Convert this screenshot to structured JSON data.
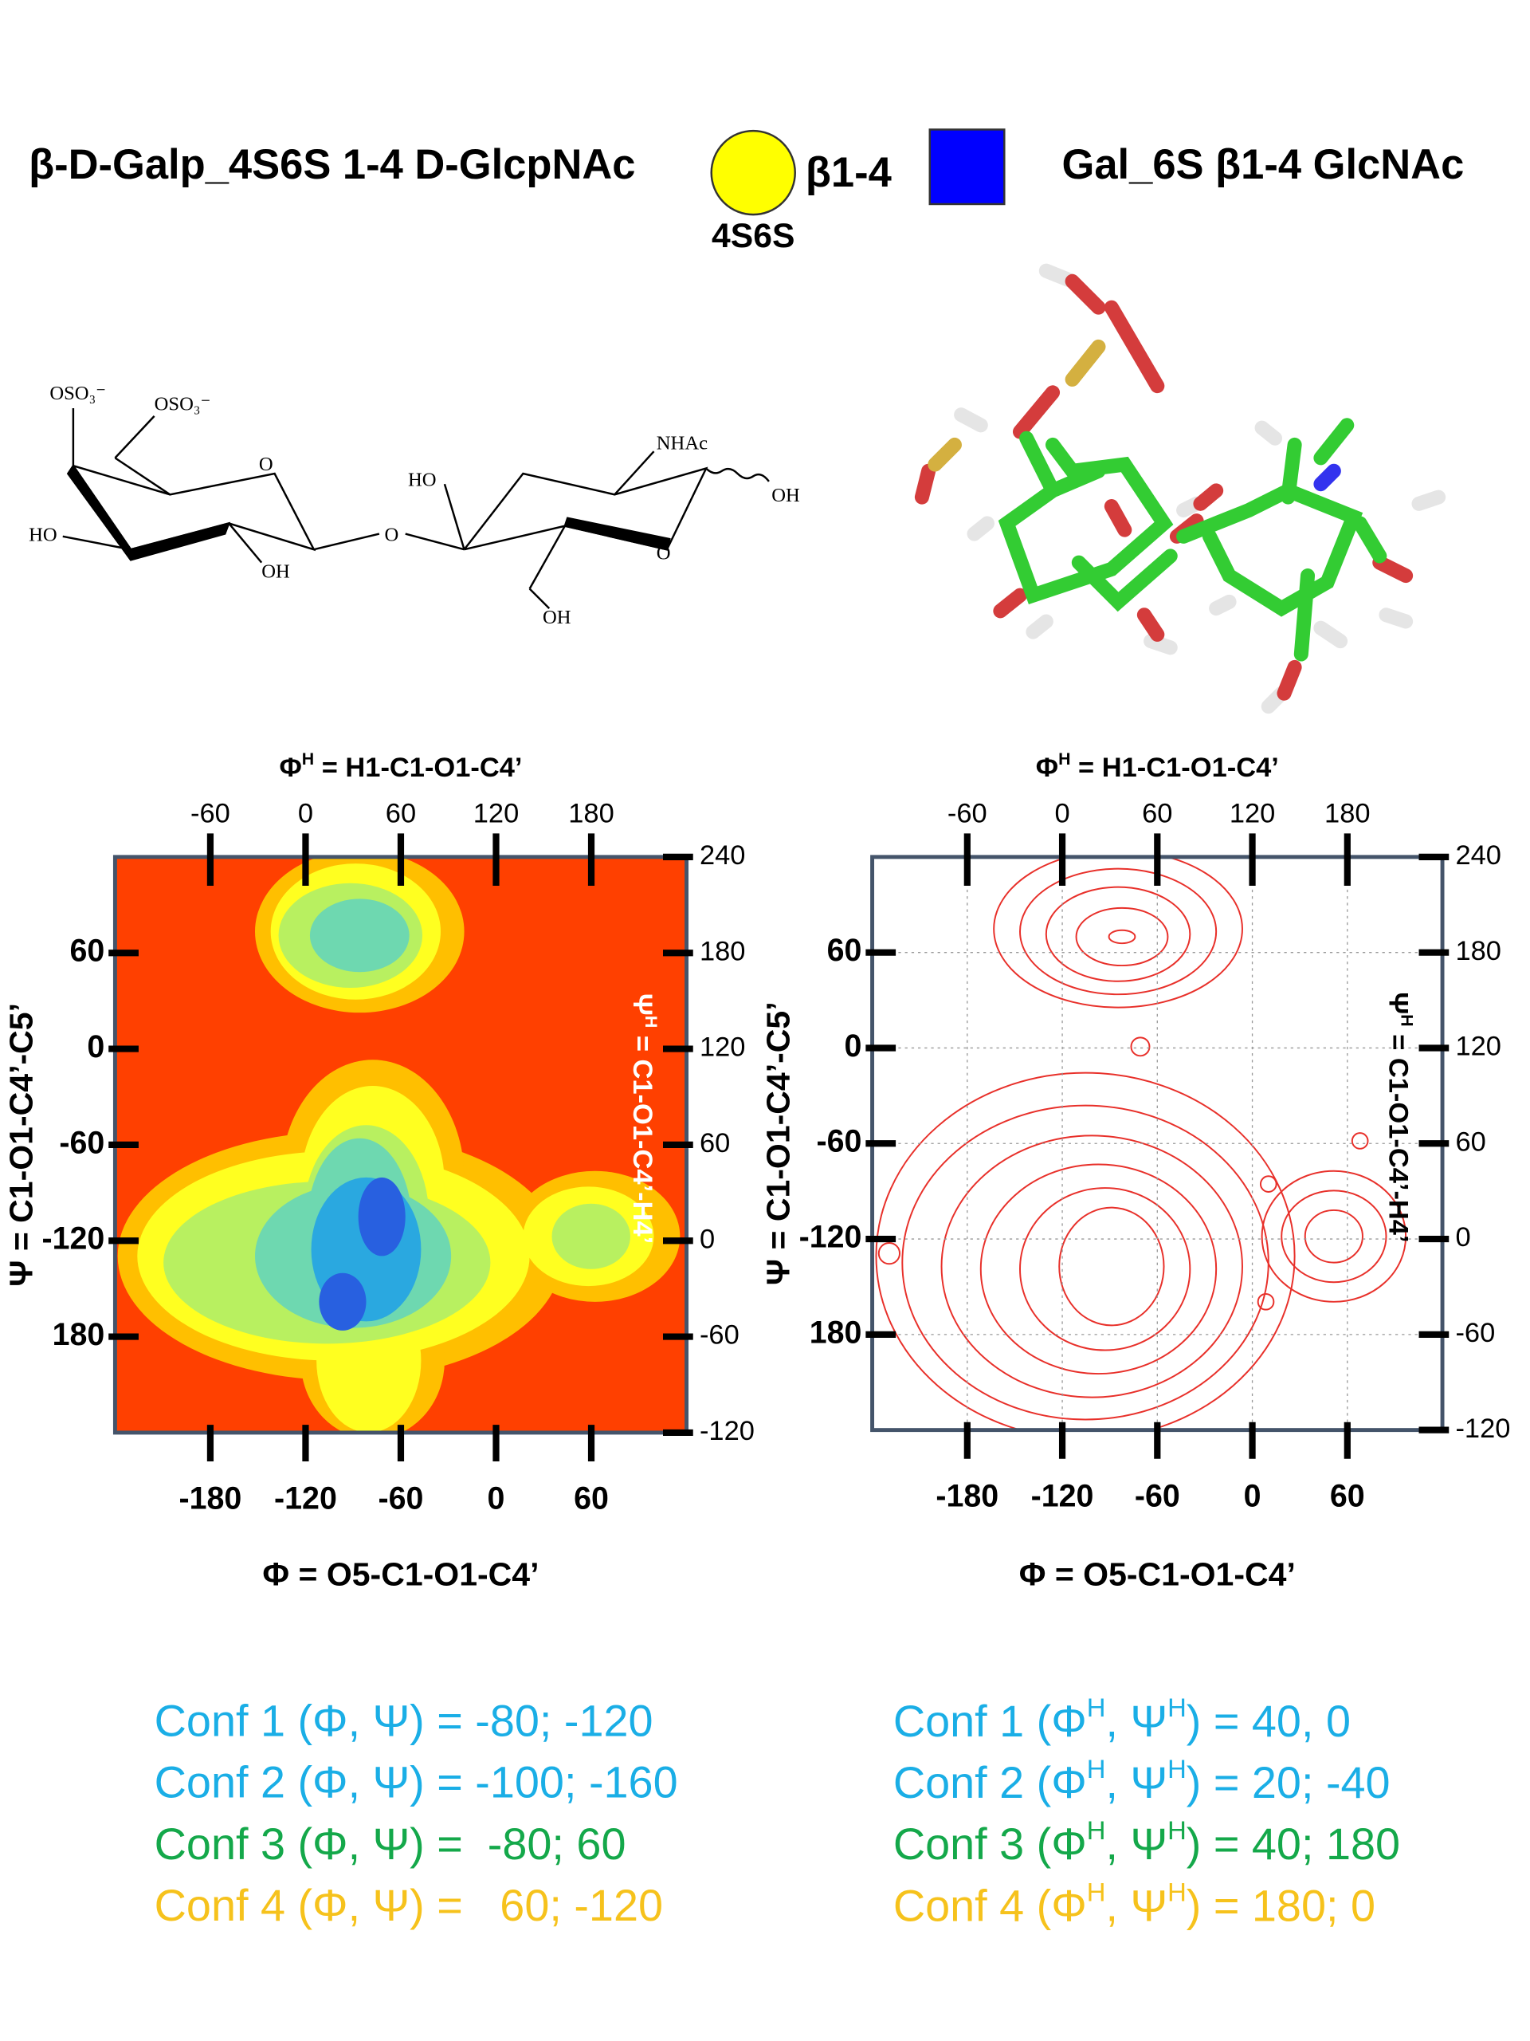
{
  "header": {
    "left_title": "β-D-Galp_4S6S 1-4 D-GlcpNAc",
    "linkage": "β1-4",
    "residue_label": "4S6S",
    "right_title": "Gal_6S β1-4 GlcNAc"
  },
  "structure_labels": [
    "OSO₃⁻",
    "OSO₃⁻",
    "O",
    "HO",
    "OH",
    "O",
    "HO",
    "NHAc",
    "OH",
    "O",
    "OH"
  ],
  "plots": [
    {
      "x2": {
        "label": [
          "Φ",
          "H",
          " = H1-C1-O1-C4’"
        ],
        "lim": [
          -120,
          240
        ],
        "ticks": [
          -60,
          0,
          60,
          120,
          180
        ]
      },
      "x": {
        "label": "Φ = O5-C1-O1-C4’",
        "lim": [
          -240,
          120
        ],
        "ticks": [
          -180,
          -120,
          -60,
          0,
          60
        ]
      },
      "y": {
        "label": "Ψ = C1-O1-C4’-C5’",
        "lim": [
          -240,
          120
        ],
        "ticks": [
          60,
          0,
          -60,
          -120,
          {
            "value": -180,
            "label": "180"
          }
        ]
      },
      "y2": {
        "label": [
          "Ψ",
          "H",
          " = C1-O1-C4’-H4’"
        ],
        "lim": [
          -120,
          240
        ],
        "ticks": [
          240,
          180,
          120,
          60,
          0,
          -60,
          -120
        ]
      }
    },
    {
      "x2": {
        "label": [
          "Φ",
          "H",
          " = H1-C1-O1-C4’"
        ],
        "lim": [
          -120,
          240
        ],
        "ticks": [
          -60,
          0,
          60,
          120,
          180
        ]
      },
      "x": {
        "label": "Φ = O5-C1-O1-C4’",
        "lim": [
          -240,
          120
        ],
        "ticks": [
          -180,
          -120,
          -60,
          0,
          60
        ]
      },
      "y": {
        "label": "Ψ = C1-O1-C4’-C5’",
        "lim": [
          -240,
          120
        ],
        "ticks": [
          60,
          0,
          -60,
          -120,
          {
            "value": -180,
            "label": "180"
          }
        ]
      },
      "y2": {
        "label": [
          "Ψ",
          "H",
          " = C1-O1-C4’-H4’"
        ],
        "lim": [
          -120,
          240
        ],
        "ticks": [
          240,
          180,
          120,
          60,
          0,
          -60,
          -120
        ]
      }
    }
  ],
  "conformations": {
    "left": [
      {
        "text": "Conf 1 (Φ, Ψ) = -80; -120",
        "color": "#1aaee6"
      },
      {
        "text": "Conf 2 (Φ, Ψ) = -100; -160",
        "color": "#1aaee6"
      },
      {
        "text": "Conf 3 (Φ, Ψ) =  -80; 60",
        "color": "#14a84a"
      },
      {
        "text": "Conf 4 (Φ, Ψ) =   60; -120",
        "color": "#f6c21c"
      }
    ],
    "right": [
      {
        "parts": [
          "Conf 1 (Φ",
          "H",
          ", Ψ",
          "H",
          ") = 40, 0"
        ],
        "color": "#1aaee6"
      },
      {
        "parts": [
          "Conf 2 (Φ",
          "H",
          ", Ψ",
          "H",
          ") = 20; -40"
        ],
        "color": "#1aaee6"
      },
      {
        "parts": [
          "Conf 3 (Φ",
          "H",
          ", Ψ",
          "H",
          ") = 40; 180"
        ],
        "color": "#14a84a"
      },
      {
        "parts": [
          "Conf 4 (Φ",
          "H",
          ", Ψ",
          "H",
          ") = 180; 0"
        ],
        "color": "#f6c21c"
      }
    ]
  }
}
